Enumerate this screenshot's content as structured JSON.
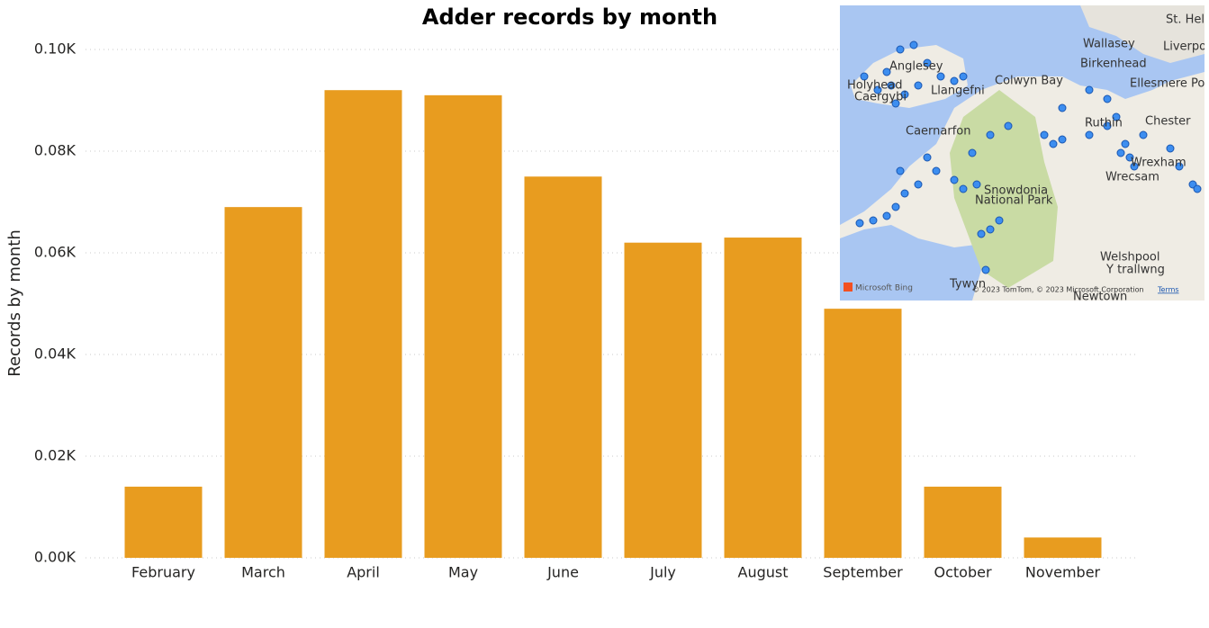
{
  "chart_data": {
    "type": "bar",
    "title": "Adder records by month",
    "y_label": "Records by month",
    "categories": [
      "February",
      "March",
      "April",
      "May",
      "June",
      "July",
      "August",
      "September",
      "October",
      "November"
    ],
    "values": [
      14,
      69,
      92,
      91,
      75,
      62,
      63,
      49,
      14,
      4
    ],
    "color": "#e89c1f",
    "ylim": [
      0,
      100
    ],
    "yticks": [
      {
        "value": 0,
        "label": "0.00K"
      },
      {
        "value": 20,
        "label": "0.02K"
      },
      {
        "value": 40,
        "label": "0.04K"
      },
      {
        "value": 60,
        "label": "0.06K"
      },
      {
        "value": 80,
        "label": "0.08K"
      },
      {
        "value": 100,
        "label": "0.10K"
      }
    ],
    "grid": true
  },
  "map": {
    "labels": [
      "St. Helens",
      "Wallasey",
      "Liverpool",
      "Birkenhead",
      "Ellesmere Port",
      "Anglesey",
      "Holyhead",
      "Caergybi",
      "Llangefni",
      "Colwyn Bay",
      "Caernarfon",
      "Ruthin",
      "Chester",
      "Wrexham",
      "Wrecsam",
      "Snowdonia",
      "National Park",
      "Welshpool",
      "Y trallwng",
      "Tywyn",
      "Newtown"
    ],
    "logo": "Microsoft Bing",
    "attribution": "© 2023 TomTom, © 2023 Microsoft Corporation",
    "terms": "Terms"
  }
}
